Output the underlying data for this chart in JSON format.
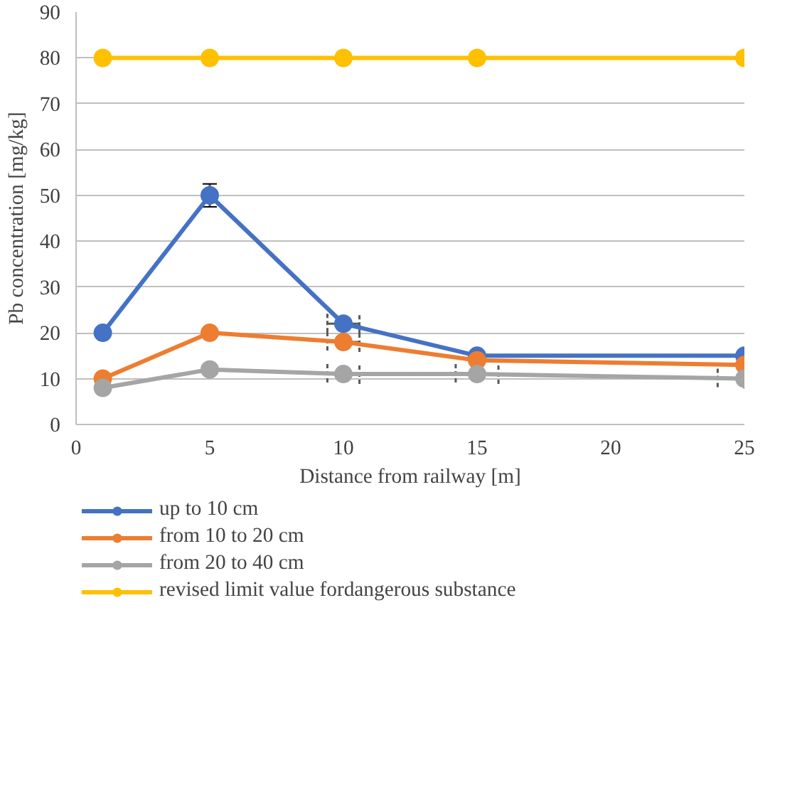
{
  "chart_data": {
    "type": "line",
    "xlabel": "Distance from railway [m]",
    "ylabel": "Pb concentration [mg/kg]",
    "x": [
      1,
      5,
      10,
      15,
      25
    ],
    "series": [
      {
        "name": "up to 10 cm",
        "color": "#4472c4",
        "values": [
          20,
          50,
          22,
          15,
          15
        ],
        "errors": [
          null,
          2.5,
          null,
          null,
          null
        ],
        "xerrors": [
          null,
          null,
          0.6,
          null,
          null
        ]
      },
      {
        "name": "from 10 to 20 cm",
        "color": "#ed7d31",
        "values": [
          10,
          20,
          18,
          14,
          13
        ],
        "xerrors": [
          null,
          null,
          0.6,
          null,
          null
        ]
      },
      {
        "name": "from 20 to 40 cm",
        "color": "#a5a5a5",
        "values": [
          8,
          12,
          11,
          11,
          10
        ],
        "xerrors": [
          null,
          null,
          0.6,
          0.8,
          [
            24,
            25
          ]
        ]
      },
      {
        "name": "revised limit value fordangerous substance",
        "color": "#ffc000",
        "values": [
          80,
          80,
          80,
          80,
          80
        ]
      }
    ],
    "xlim": [
      0,
      25
    ],
    "xticks": [
      0,
      5,
      10,
      15,
      20,
      25
    ],
    "ylim": [
      0,
      90
    ],
    "yticks": [
      0,
      10,
      20,
      30,
      40,
      50,
      60,
      70,
      80,
      90
    ],
    "grid": "y",
    "legend": "bottom",
    "marker": "circle",
    "line_style": "solid"
  }
}
